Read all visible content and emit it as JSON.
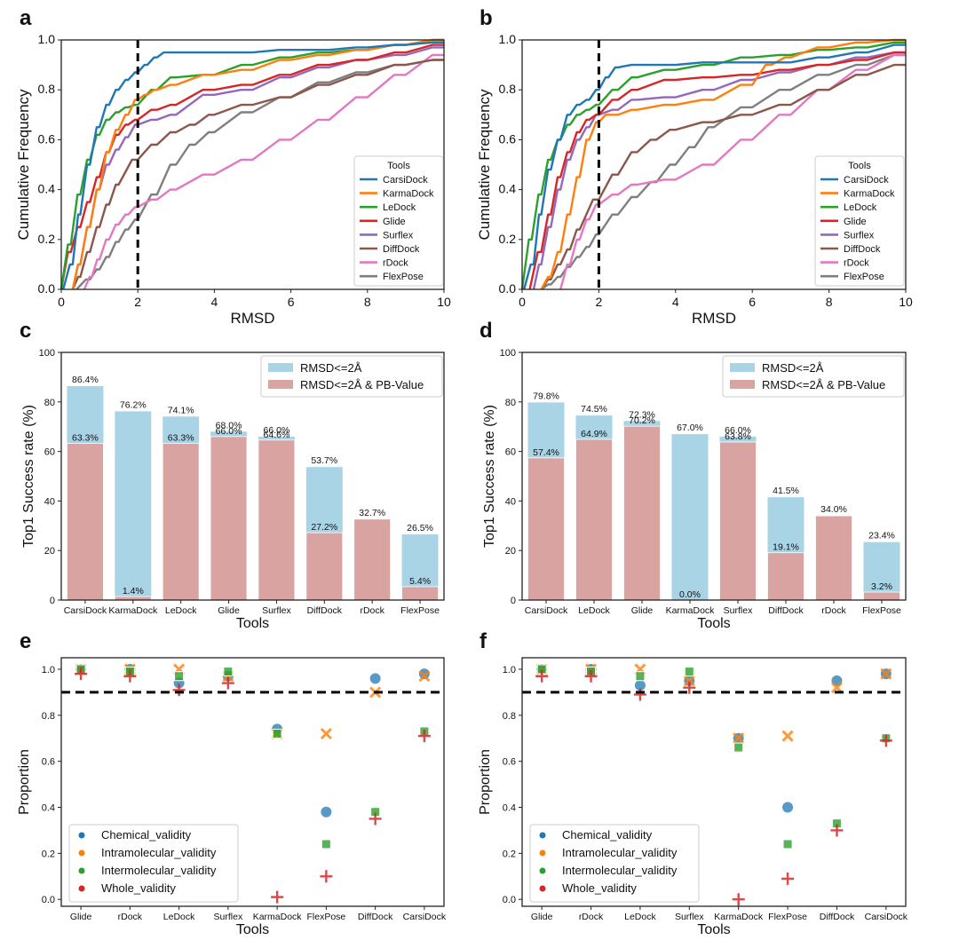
{
  "colors": {
    "CarsiDock": "#1f77b4",
    "KarmaDock": "#ff7f0e",
    "LeDock": "#2ca02c",
    "Glide": "#d62728",
    "Surflex": "#9467bd",
    "DiffDock": "#8c564b",
    "rDock": "#e377c2",
    "FlexPose": "#7f7f7f",
    "bar_rmsd": "#a8d4e6",
    "bar_pb": "#d8a3a0",
    "chemical": "#1f77b4",
    "intramolecular": "#ff7f0e",
    "intermolecular": "#2ca02c",
    "whole": "#d62728"
  },
  "chart_data": [
    {
      "panel": "a",
      "type": "line",
      "xlabel": "RMSD",
      "ylabel": "Cumulative Frequency",
      "xlim": [
        0,
        10
      ],
      "ylim": [
        0,
        1
      ],
      "xticks": [
        "0",
        "2",
        "4",
        "6",
        "8",
        "10"
      ],
      "yticks": [
        "0.0",
        "0.2",
        "0.4",
        "0.6",
        "0.8",
        "1.0"
      ],
      "vline_x": 2,
      "legend_title": "Tools",
      "legend_position": "lower-right",
      "series": [
        {
          "name": "CarsiDock",
          "x": [
            0.05,
            0.3,
            0.5,
            0.75,
            1.0,
            1.25,
            1.5,
            1.75,
            2.0,
            2.25,
            2.5,
            2.75,
            3.0,
            3.5,
            4.0,
            5.0,
            6.0,
            7.0,
            8.0,
            9.0,
            10.0
          ],
          "y": [
            0,
            0.1,
            0.3,
            0.5,
            0.65,
            0.74,
            0.8,
            0.84,
            0.87,
            0.9,
            0.93,
            0.95,
            0.95,
            0.95,
            0.95,
            0.95,
            0.96,
            0.96,
            0.97,
            0.98,
            0.99
          ]
        },
        {
          "name": "KarmaDock",
          "x": [
            0.3,
            0.5,
            0.75,
            1.0,
            1.25,
            1.5,
            1.75,
            2.0,
            2.25,
            2.5,
            3.0,
            4.0,
            5.0,
            6.0,
            7.0,
            8.0,
            9.0,
            10.0
          ],
          "y": [
            0,
            0.1,
            0.25,
            0.4,
            0.55,
            0.64,
            0.7,
            0.76,
            0.78,
            0.8,
            0.82,
            0.86,
            0.88,
            0.92,
            0.94,
            0.96,
            0.98,
            1.0
          ]
        },
        {
          "name": "LeDock",
          "x": [
            0.0,
            0.25,
            0.5,
            0.75,
            1.0,
            1.25,
            1.5,
            1.75,
            2.0,
            2.5,
            3.0,
            4.0,
            5.0,
            6.0,
            7.0,
            8.0,
            9.0,
            10.0
          ],
          "y": [
            0,
            0.18,
            0.38,
            0.52,
            0.62,
            0.68,
            0.71,
            0.73,
            0.74,
            0.8,
            0.85,
            0.86,
            0.9,
            0.93,
            0.95,
            0.96,
            0.98,
            1.0
          ]
        },
        {
          "name": "Glide",
          "x": [
            0.0,
            0.25,
            0.5,
            0.75,
            1.0,
            1.25,
            1.5,
            1.75,
            2.0,
            2.5,
            3.0,
            4.0,
            5.0,
            6.0,
            7.0,
            8.0,
            9.0,
            10.0
          ],
          "y": [
            0,
            0.15,
            0.25,
            0.35,
            0.45,
            0.55,
            0.62,
            0.66,
            0.68,
            0.72,
            0.74,
            0.8,
            0.82,
            0.86,
            0.9,
            0.92,
            0.95,
            0.98
          ]
        },
        {
          "name": "Surflex",
          "x": [
            0.3,
            0.5,
            0.75,
            1.0,
            1.25,
            1.5,
            1.75,
            2.0,
            2.5,
            3.0,
            4.0,
            5.0,
            6.0,
            7.0,
            8.0,
            9.0,
            10.0
          ],
          "y": [
            0,
            0.1,
            0.25,
            0.4,
            0.5,
            0.56,
            0.61,
            0.66,
            0.68,
            0.7,
            0.78,
            0.8,
            0.85,
            0.89,
            0.92,
            0.94,
            0.97
          ]
        },
        {
          "name": "DiffDock",
          "x": [
            0.3,
            0.5,
            0.75,
            1.0,
            1.25,
            1.5,
            2.0,
            2.5,
            3.0,
            3.5,
            4.0,
            5.0,
            6.0,
            7.0,
            8.0,
            9.0,
            10.0
          ],
          "y": [
            0,
            0.05,
            0.15,
            0.25,
            0.34,
            0.42,
            0.52,
            0.58,
            0.63,
            0.66,
            0.7,
            0.74,
            0.77,
            0.82,
            0.86,
            0.9,
            0.92
          ]
        },
        {
          "name": "rDock",
          "x": [
            0.6,
            0.8,
            1.0,
            1.25,
            1.5,
            1.75,
            2.0,
            2.5,
            3.0,
            4.0,
            5.0,
            6.0,
            7.0,
            8.0,
            9.0,
            10.0
          ],
          "y": [
            0,
            0.05,
            0.12,
            0.2,
            0.26,
            0.3,
            0.33,
            0.36,
            0.4,
            0.46,
            0.52,
            0.6,
            0.68,
            0.77,
            0.86,
            0.94
          ]
        },
        {
          "name": "FlexPose",
          "x": [
            0.4,
            0.75,
            1.0,
            1.25,
            1.5,
            1.75,
            2.0,
            2.5,
            3.0,
            3.5,
            4.0,
            5.0,
            6.0,
            7.0,
            8.0,
            9.0,
            10.0
          ],
          "y": [
            0,
            0.04,
            0.08,
            0.13,
            0.19,
            0.24,
            0.28,
            0.38,
            0.5,
            0.58,
            0.63,
            0.71,
            0.77,
            0.83,
            0.87,
            0.9,
            0.92
          ]
        }
      ]
    },
    {
      "panel": "b",
      "type": "line",
      "xlabel": "RMSD",
      "ylabel": "Cumulative Frequency",
      "xlim": [
        0,
        10
      ],
      "ylim": [
        0,
        1
      ],
      "xticks": [
        "0",
        "2",
        "4",
        "6",
        "8",
        "10"
      ],
      "yticks": [
        "0.0",
        "0.2",
        "0.4",
        "0.6",
        "0.8",
        "1.0"
      ],
      "vline_x": 2,
      "legend_title": "Tools",
      "legend_position": "lower-right",
      "series": [
        {
          "name": "CarsiDock",
          "x": [
            0.05,
            0.3,
            0.5,
            0.75,
            1.0,
            1.25,
            1.5,
            1.75,
            2.0,
            2.25,
            2.5,
            3.0,
            4.0,
            5.0,
            6.0,
            7.0,
            8.0,
            9.0,
            10.0
          ],
          "y": [
            0,
            0.1,
            0.3,
            0.48,
            0.6,
            0.7,
            0.74,
            0.76,
            0.8,
            0.85,
            0.89,
            0.9,
            0.9,
            0.91,
            0.91,
            0.91,
            0.93,
            0.95,
            0.98
          ]
        },
        {
          "name": "KarmaDock",
          "x": [
            0.5,
            0.75,
            1.0,
            1.25,
            1.5,
            1.75,
            2.0,
            2.25,
            2.5,
            3.0,
            4.0,
            5.0,
            6.0,
            6.5,
            7.0,
            8.0,
            9.0,
            10.0
          ],
          "y": [
            0,
            0.05,
            0.15,
            0.3,
            0.45,
            0.6,
            0.67,
            0.7,
            0.7,
            0.72,
            0.74,
            0.76,
            0.82,
            0.9,
            0.93,
            0.97,
            0.99,
            1.0
          ]
        },
        {
          "name": "LeDock",
          "x": [
            0.0,
            0.25,
            0.5,
            0.75,
            1.0,
            1.25,
            1.5,
            1.75,
            2.0,
            2.5,
            3.0,
            4.0,
            5.0,
            6.0,
            7.0,
            8.0,
            9.0,
            10.0
          ],
          "y": [
            0,
            0.2,
            0.38,
            0.52,
            0.6,
            0.66,
            0.7,
            0.72,
            0.74,
            0.8,
            0.85,
            0.88,
            0.9,
            0.93,
            0.94,
            0.96,
            0.97,
            0.99
          ]
        },
        {
          "name": "Glide",
          "x": [
            0.2,
            0.5,
            0.75,
            1.0,
            1.25,
            1.5,
            1.75,
            2.0,
            2.5,
            3.0,
            4.0,
            5.0,
            6.0,
            7.0,
            8.0,
            9.0,
            10.0
          ],
          "y": [
            0,
            0.15,
            0.3,
            0.45,
            0.55,
            0.63,
            0.68,
            0.7,
            0.76,
            0.8,
            0.84,
            0.85,
            0.86,
            0.88,
            0.9,
            0.92,
            0.95
          ]
        },
        {
          "name": "Surflex",
          "x": [
            0.3,
            0.5,
            0.75,
            1.0,
            1.25,
            1.5,
            1.75,
            2.0,
            2.5,
            3.0,
            4.0,
            5.0,
            6.0,
            7.0,
            8.0,
            9.0,
            10.0
          ],
          "y": [
            0,
            0.1,
            0.25,
            0.4,
            0.52,
            0.6,
            0.65,
            0.7,
            0.72,
            0.76,
            0.77,
            0.8,
            0.84,
            0.87,
            0.9,
            0.93,
            0.95
          ]
        },
        {
          "name": "DiffDock",
          "x": [
            0.5,
            0.75,
            1.0,
            1.25,
            1.5,
            2.0,
            2.5,
            3.0,
            3.5,
            4.0,
            5.0,
            6.0,
            7.0,
            8.0,
            9.0,
            10.0
          ],
          "y": [
            0,
            0.04,
            0.1,
            0.16,
            0.24,
            0.36,
            0.46,
            0.55,
            0.6,
            0.64,
            0.67,
            0.7,
            0.74,
            0.8,
            0.86,
            0.9
          ]
        },
        {
          "name": "rDock",
          "x": [
            1.0,
            1.25,
            1.5,
            1.75,
            2.0,
            2.5,
            3.0,
            4.0,
            5.0,
            6.0,
            7.0,
            8.0,
            9.0,
            10.0
          ],
          "y": [
            0,
            0.1,
            0.2,
            0.28,
            0.34,
            0.38,
            0.42,
            0.44,
            0.5,
            0.6,
            0.7,
            0.8,
            0.88,
            0.94
          ]
        },
        {
          "name": "FlexPose",
          "x": [
            0.5,
            0.75,
            1.0,
            1.25,
            1.5,
            1.75,
            2.0,
            2.5,
            3.0,
            3.5,
            4.0,
            4.5,
            5.0,
            6.0,
            7.0,
            8.0,
            9.0,
            10.0
          ],
          "y": [
            0,
            0.02,
            0.05,
            0.09,
            0.13,
            0.17,
            0.22,
            0.3,
            0.37,
            0.43,
            0.5,
            0.57,
            0.65,
            0.73,
            0.8,
            0.86,
            0.9,
            0.94
          ]
        }
      ]
    },
    {
      "panel": "c",
      "type": "bar",
      "xlabel": "Tools",
      "ylabel": "Top1 Success rate (%)",
      "ylim": [
        0,
        100
      ],
      "yticks": [
        "0",
        "20",
        "40",
        "60",
        "80",
        "100"
      ],
      "legend_position": "top-right",
      "categories": [
        "CarsiDock",
        "KarmaDock",
        "LeDock",
        "Glide",
        "Surflex",
        "DiffDock",
        "rDock",
        "FlexPose"
      ],
      "series": [
        {
          "name": "RMSD<=2Å",
          "values": [
            86.4,
            76.2,
            74.1,
            68.0,
            66.0,
            53.7,
            32.7,
            26.5
          ],
          "labels": [
            "86.4%",
            "76.2%",
            "74.1%",
            "68.0%",
            "66.0%",
            "53.7%",
            "32.7%",
            "26.5%"
          ]
        },
        {
          "name": "RMSD<=2Å & PB-Value",
          "values": [
            63.3,
            1.4,
            63.3,
            66.0,
            64.6,
            27.2,
            32.7,
            5.4
          ],
          "labels": [
            "63.3%",
            "1.4%",
            "63.3%",
            "66.0%",
            "64.6%",
            "27.2%",
            "",
            "5.4%"
          ]
        }
      ]
    },
    {
      "panel": "d",
      "type": "bar",
      "xlabel": "Tools",
      "ylabel": "Top1 Success rate (%)",
      "ylim": [
        0,
        100
      ],
      "yticks": [
        "0",
        "20",
        "40",
        "60",
        "80",
        "100"
      ],
      "legend_position": "top-right",
      "categories": [
        "CarsiDock",
        "LeDock",
        "Glide",
        "KarmaDock",
        "Surflex",
        "DiffDock",
        "rDock",
        "FlexPose"
      ],
      "series": [
        {
          "name": "RMSD<=2Å",
          "values": [
            79.8,
            74.5,
            72.3,
            67.0,
            66.0,
            41.5,
            34.0,
            23.4
          ],
          "labels": [
            "79.8%",
            "74.5%",
            "72.3%",
            "67.0%",
            "66.0%",
            "41.5%",
            "34.0%",
            "23.4%"
          ]
        },
        {
          "name": "RMSD<=2Å & PB-Value",
          "values": [
            57.4,
            64.9,
            70.2,
            0.0,
            63.8,
            19.1,
            34.0,
            3.2
          ],
          "labels": [
            "57.4%",
            "64.9%",
            "70.2%",
            "0.0%",
            "63.8%",
            "19.1%",
            "",
            "3.2%"
          ]
        }
      ]
    },
    {
      "panel": "e",
      "type": "scatter",
      "xlabel": "Tools",
      "ylabel": "Proportion",
      "ylim": [
        -0.03,
        1.05
      ],
      "yticks": [
        "0.0",
        "0.2",
        "0.4",
        "0.6",
        "0.8",
        "1.0"
      ],
      "hline_y": 0.9,
      "legend_position": "lower-left",
      "categories": [
        "Glide",
        "rDock",
        "LeDock",
        "Surflex",
        "KarmaDock",
        "FlexPose",
        "DiffDock",
        "CarsiDock"
      ],
      "series": [
        {
          "name": "Chemical_validity",
          "marker": "circle",
          "values": [
            1.0,
            1.0,
            0.94,
            0.97,
            0.74,
            0.38,
            0.96,
            0.98
          ]
        },
        {
          "name": "Intramolecular_validity",
          "marker": "x",
          "values": [
            1.0,
            1.0,
            1.0,
            0.97,
            0.72,
            0.72,
            0.9,
            0.97
          ]
        },
        {
          "name": "Intermolecular_validity",
          "marker": "square",
          "values": [
            1.0,
            0.99,
            0.97,
            0.99,
            0.72,
            0.24,
            0.38,
            0.73
          ]
        },
        {
          "name": "Whole_validity",
          "marker": "plus",
          "values": [
            0.98,
            0.97,
            0.91,
            0.94,
            0.01,
            0.1,
            0.35,
            0.71
          ]
        }
      ]
    },
    {
      "panel": "f",
      "type": "scatter",
      "xlabel": "Tools",
      "ylabel": "Proportion",
      "ylim": [
        -0.03,
        1.05
      ],
      "yticks": [
        "0.0",
        "0.2",
        "0.4",
        "0.6",
        "0.8",
        "1.0"
      ],
      "hline_y": 0.9,
      "legend_position": "lower-left",
      "categories": [
        "Glide",
        "rDock",
        "LeDock",
        "Surflex",
        "KarmaDock",
        "FlexPose",
        "DiffDock",
        "CarsiDock"
      ],
      "series": [
        {
          "name": "Chemical_validity",
          "marker": "circle",
          "values": [
            1.0,
            1.0,
            0.93,
            0.95,
            0.7,
            0.4,
            0.95,
            0.98
          ]
        },
        {
          "name": "Intramolecular_validity",
          "marker": "x",
          "values": [
            1.0,
            1.0,
            1.0,
            0.95,
            0.7,
            0.71,
            0.92,
            0.98
          ]
        },
        {
          "name": "Intermolecular_validity",
          "marker": "square",
          "values": [
            1.0,
            0.99,
            0.97,
            0.99,
            0.66,
            0.24,
            0.33,
            0.7
          ]
        },
        {
          "name": "Whole_validity",
          "marker": "plus",
          "values": [
            0.97,
            0.97,
            0.89,
            0.92,
            0.0,
            0.09,
            0.3,
            0.69
          ]
        }
      ]
    }
  ]
}
